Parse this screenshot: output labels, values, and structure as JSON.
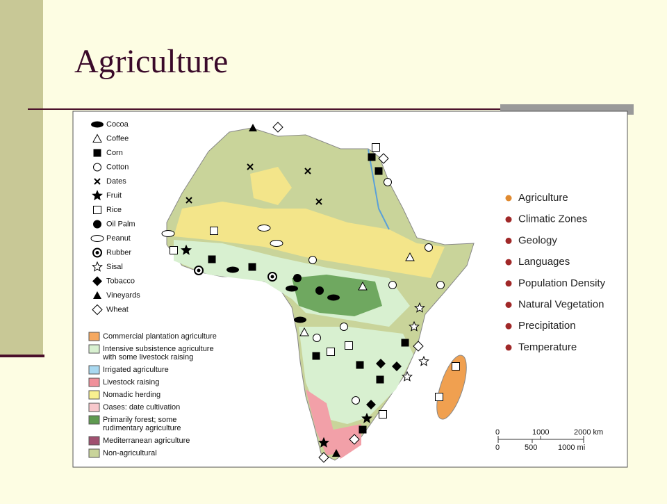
{
  "title": "Agriculture",
  "map": {
    "crop_legend": [
      "Cocoa",
      "Coffee",
      "Corn",
      "Cotton",
      "Dates",
      "Fruit",
      "Rice",
      "Oil Palm",
      "Peanut",
      "Rubber",
      "Sisal",
      "Tobacco",
      "Vineyards",
      "Wheat"
    ],
    "land_use_legend": [
      [
        "Commercial plantation agriculture"
      ],
      [
        "Intensive subsistence agriculture",
        "with some livestock raising"
      ],
      [
        "Irrigated agriculture"
      ],
      [
        "Livestock raising"
      ],
      [
        "Nomadic herding"
      ],
      [
        "Oases: date cultivation"
      ],
      [
        "Primarily forest; some",
        "rudimentary agriculture"
      ],
      [
        "Mediterranean agriculture"
      ],
      [
        "Non-agricultural"
      ]
    ],
    "scale": {
      "km": [
        "0",
        "1000",
        "2000 km"
      ],
      "mi": [
        "0",
        "500",
        "1000 mi"
      ]
    }
  },
  "topics": [
    "Agriculture",
    "Climatic Zones",
    "Geology",
    "Languages",
    "Population Density",
    "Natural Vegetation",
    "Precipitation",
    "Temperature"
  ]
}
